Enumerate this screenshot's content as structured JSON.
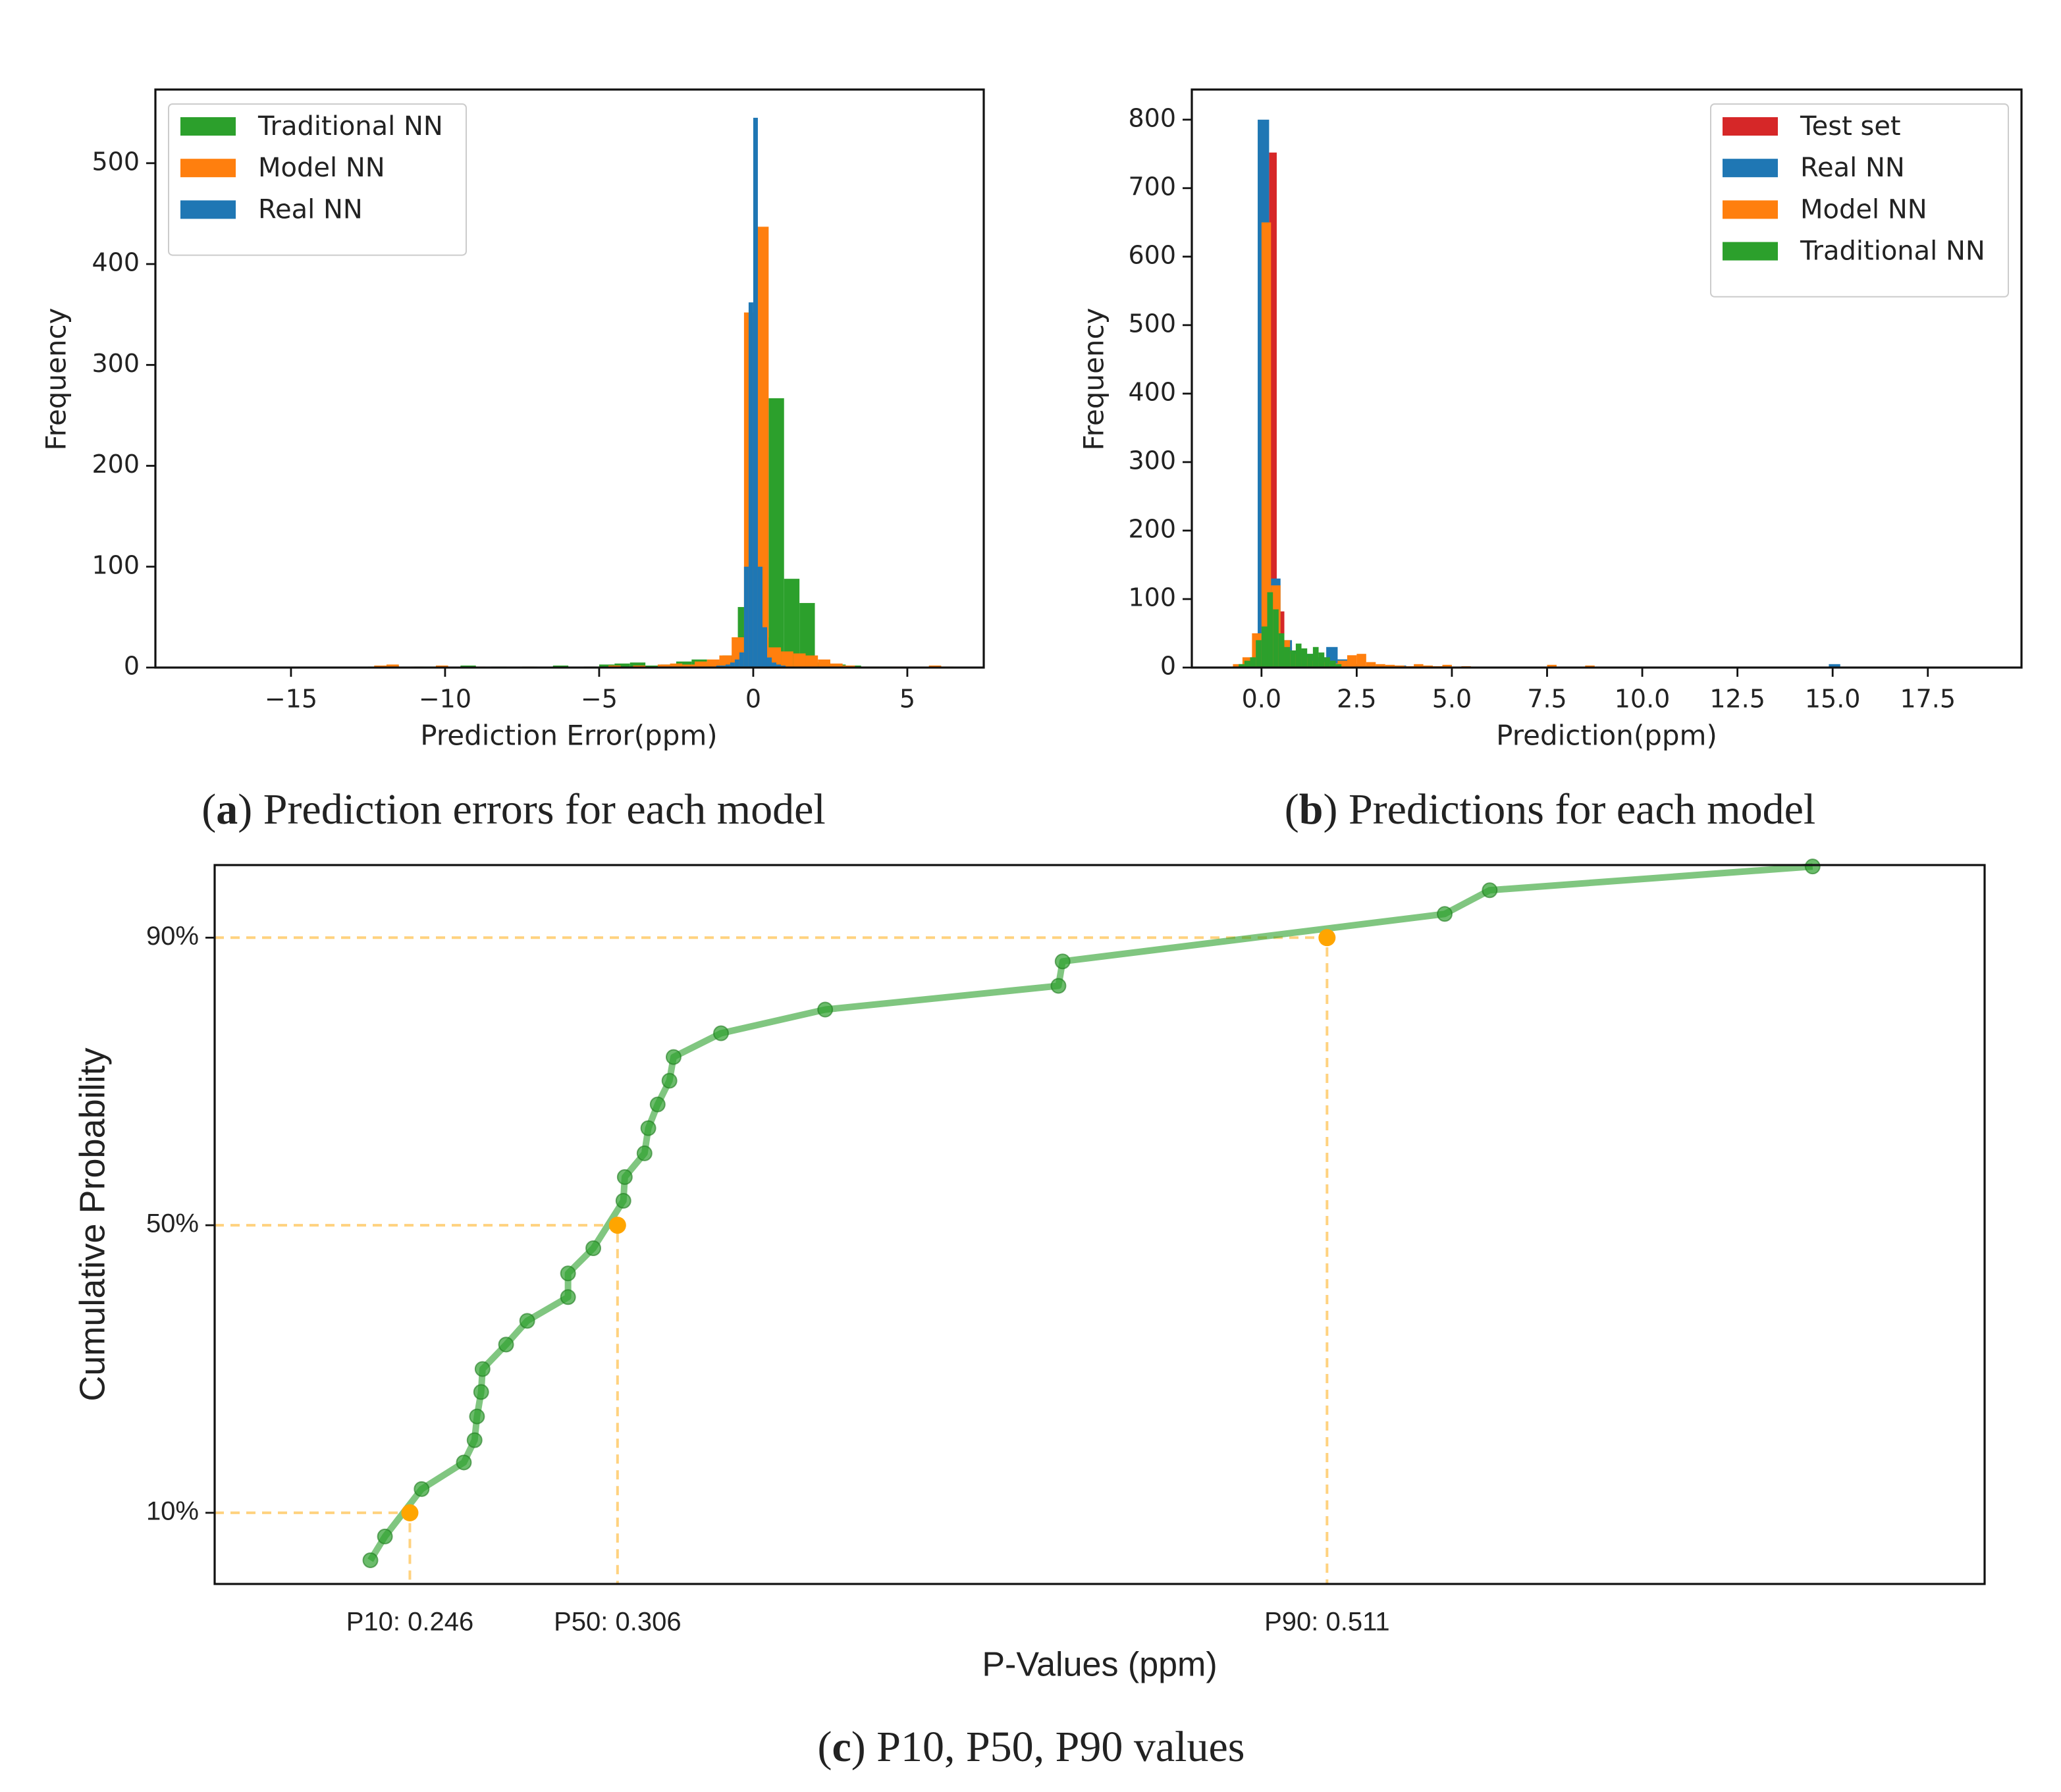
{
  "chart_data": [
    {
      "type": "histogram",
      "xlabel": "Prediction Error(ppm)",
      "ylabel": "Frequency",
      "caption": {
        "open": "(",
        "label": "a",
        "close": ") Prediction errors for each model"
      },
      "xlim": [
        -19.4,
        7.48
      ],
      "ylim": [
        0,
        573
      ],
      "xticks": [
        {
          "value": -15,
          "label": "−15"
        },
        {
          "value": -10,
          "label": "−10"
        },
        {
          "value": -5,
          "label": "−5"
        },
        0,
        5
      ],
      "yticks": [
        0,
        100,
        200,
        300,
        400,
        500
      ],
      "legend": "upper left",
      "series": [
        {
          "name": "Traditional NN",
          "color": "#2ca02c",
          "bins": [
            -12.5,
            -12.0,
            -11.5,
            -11.0,
            -10.5,
            -10.0,
            -9.5,
            -9.0,
            -8.5,
            -8.0,
            -7.5,
            -7.0,
            -6.5,
            -6.0,
            -5.5,
            -5.0,
            -4.5,
            -4.0,
            -3.5,
            -3.0,
            -2.5,
            -2.0,
            -1.5,
            -1.0,
            -0.5,
            0.0,
            0.5,
            1.0,
            1.5,
            2.0,
            2.5,
            3.0,
            3.5,
            4.0,
            4.5,
            5.0,
            5.5,
            6.0
          ],
          "values": [
            1,
            2,
            0,
            1,
            1,
            0,
            2,
            0,
            1,
            0,
            1,
            0,
            2,
            0,
            1,
            3,
            4,
            5,
            2,
            3,
            6,
            8,
            5,
            12,
            60,
            30,
            267,
            88,
            64,
            5,
            3,
            2,
            1,
            1,
            0,
            0,
            0
          ]
        },
        {
          "name": "Model NN",
          "color": "#ff7f0e",
          "bins": [
            -12.3,
            -11.9,
            -11.5,
            -11.1,
            -10.7,
            -10.3,
            -9.9,
            -9.5,
            -9.1,
            -8.7,
            -8.3,
            -7.9,
            -7.5,
            -7.1,
            -6.7,
            -6.3,
            -5.9,
            -5.5,
            -5.1,
            -4.7,
            -4.3,
            -3.9,
            -3.5,
            -3.1,
            -2.7,
            -2.3,
            -1.9,
            -1.5,
            -1.1,
            -0.7,
            -0.3,
            0.1,
            0.5,
            0.9,
            1.3,
            1.7,
            2.1,
            2.5,
            2.9,
            3.3,
            3.7,
            4.1,
            4.5,
            4.9,
            5.3,
            5.7,
            6.1,
            6.5
          ],
          "values": [
            2,
            3,
            0,
            1,
            0,
            2,
            0,
            0,
            1,
            0,
            0,
            0,
            1,
            0,
            0,
            0,
            0,
            1,
            0,
            2,
            1,
            2,
            0,
            3,
            4,
            3,
            6,
            8,
            12,
            30,
            352,
            437,
            20,
            16,
            14,
            12,
            8,
            4,
            2,
            1,
            1,
            0,
            1,
            0,
            0,
            2,
            1
          ]
        },
        {
          "name": "Real NN",
          "color": "#1f77b4",
          "bins": [
            -1.5,
            -1.35,
            -1.2,
            -1.05,
            -0.9,
            -0.75,
            -0.6,
            -0.45,
            -0.3,
            -0.15,
            0,
            0.15,
            0.3,
            0.45,
            0.6,
            0.75,
            0.9,
            1.05,
            1.2,
            1.35,
            1.5
          ],
          "values": [
            1,
            1,
            2,
            2,
            3,
            5,
            8,
            15,
            100,
            362,
            545,
            100,
            40,
            10,
            5,
            3,
            2,
            1,
            1,
            0
          ]
        }
      ]
    },
    {
      "type": "histogram",
      "xlabel": "Prediction(ppm)",
      "ylabel": "Frequency",
      "caption": {
        "open": "(",
        "label": "b",
        "close": ") Predictions for each model"
      },
      "xlim": [
        -1.83,
        19.96
      ],
      "ylim": [
        0,
        844
      ],
      "xticks": [
        {
          "value": 0,
          "label": "0.0"
        },
        2.5,
        {
          "value": 5,
          "label": "5.0"
        },
        7.5,
        {
          "value": 10,
          "label": "10.0"
        },
        12.5,
        {
          "value": 15,
          "label": "15.0"
        },
        17.5
      ],
      "yticks": [
        0,
        100,
        200,
        300,
        400,
        500,
        600,
        700,
        800
      ],
      "legend": "upper right",
      "series": [
        {
          "name": "Test set",
          "color": "#d62728",
          "bins": [
            0,
            0.2,
            0.4,
            0.6,
            0.8,
            1.0,
            1.2,
            1.4,
            1.6,
            1.8,
            2.0
          ],
          "values": [
            600,
            752,
            82,
            30,
            20,
            15,
            10,
            8,
            5,
            3
          ]
        },
        {
          "name": "Real NN",
          "color": "#1f77b4",
          "bins": [
            -0.1,
            0.2,
            0.5,
            0.8,
            1.1,
            1.4,
            1.7,
            2.0,
            2.3,
            2.6,
            2.9,
            3.2,
            3.5,
            3.8,
            4.1,
            4.4,
            4.7,
            5.0,
            5.3,
            5.6,
            5.9,
            6.2,
            6.5,
            6.8,
            7.1,
            7.4,
            7.7,
            8.0,
            8.3,
            8.6,
            8.9,
            9.2,
            9.5,
            9.8,
            10.1,
            10.4,
            10.7,
            11.0,
            11.3,
            11.6,
            11.9,
            12.2,
            12.5,
            12.8,
            13.1,
            13.4,
            13.7,
            14.0,
            14.3,
            14.6,
            14.9,
            15.2,
            15.5
          ],
          "values": [
            800,
            130,
            40,
            25,
            20,
            15,
            30,
            12,
            5,
            3,
            2,
            2,
            3,
            1,
            2,
            1,
            0,
            1,
            0,
            1,
            1,
            0,
            0,
            1,
            0,
            0,
            0,
            0,
            0,
            0,
            0,
            0,
            0,
            0,
            0,
            0,
            0,
            0,
            0,
            0,
            0,
            0,
            0,
            0,
            0,
            0,
            0,
            0,
            0,
            0,
            5,
            0
          ]
        },
        {
          "name": "Model NN",
          "color": "#ff7f0e",
          "bins": [
            -0.75,
            -0.5,
            -0.25,
            0,
            0.25,
            0.5,
            0.75,
            1.0,
            1.25,
            1.5,
            1.75,
            2.0,
            2.25,
            2.5,
            2.75,
            3.0,
            3.25,
            3.5,
            3.75,
            4.0,
            4.25,
            4.5,
            4.75,
            5.0,
            5.25,
            5.5,
            5.75,
            6.0,
            6.25,
            6.5,
            6.75,
            7.0,
            7.25,
            7.5,
            7.75,
            8.0,
            8.25,
            8.5,
            8.75,
            9.0
          ],
          "values": [
            5,
            15,
            50,
            650,
            120,
            40,
            20,
            15,
            10,
            8,
            6,
            10,
            18,
            20,
            8,
            5,
            4,
            3,
            2,
            5,
            3,
            2,
            4,
            1,
            2,
            1,
            1,
            1,
            0,
            1,
            0,
            1,
            0,
            4,
            1,
            0,
            0,
            3,
            0
          ]
        },
        {
          "name": "Traditional NN",
          "color": "#2ca02c",
          "bins": [
            -0.6,
            -0.45,
            -0.3,
            -0.15,
            0,
            0.15,
            0.3,
            0.45,
            0.6,
            0.75,
            0.9,
            1.05,
            1.2,
            1.35,
            1.5,
            1.65,
            1.8,
            1.95,
            2.1
          ],
          "values": [
            5,
            10,
            15,
            40,
            60,
            110,
            85,
            50,
            30,
            25,
            35,
            28,
            20,
            30,
            22,
            15,
            10,
            5
          ]
        }
      ]
    },
    {
      "type": "line",
      "xlabel": "P-Values (ppm)",
      "ylabel": "Cumulative Probability",
      "caption": {
        "open": "(",
        "label": "c",
        "close": ") P10, P50, P90 values"
      },
      "xlim": [
        0.1896,
        0.701
      ],
      "ylim": [
        0.1,
        100.1
      ],
      "yticks": [
        {
          "value": 10,
          "label": "10%"
        },
        {
          "value": 50,
          "label": "50%"
        },
        {
          "value": 90,
          "label": "90%"
        }
      ],
      "series": [
        {
          "color": "#2ca02c",
          "x": [
            0.2346,
            0.2388,
            0.2494,
            0.2616,
            0.2647,
            0.2654,
            0.2666,
            0.267,
            0.2738,
            0.2799,
            0.2917,
            0.2917,
            0.299,
            0.3077,
            0.3081,
            0.3138,
            0.3149,
            0.3176,
            0.321,
            0.3222,
            0.3359,
            0.366,
            0.4334,
            0.4346,
            0.545,
            0.558,
            0.6513
          ],
          "values": [
            3.4,
            6.7,
            13.3,
            17.0,
            20.1,
            23.4,
            26.8,
            30.0,
            33.4,
            36.7,
            40.0,
            43.3,
            46.8,
            53.4,
            56.7,
            60.0,
            63.5,
            66.8,
            70.1,
            73.4,
            76.7,
            80.0,
            83.3,
            86.7,
            93.3,
            96.6,
            99.9
          ]
        }
      ],
      "percentiles": {
        "color": "#ffa500",
        "x": [
          0.246,
          0.306,
          0.511
        ],
        "values": [
          10,
          50,
          90
        ],
        "labels": [
          "P10: 0.246",
          "P50: 0.306",
          "P90: 0.511"
        ]
      }
    }
  ]
}
